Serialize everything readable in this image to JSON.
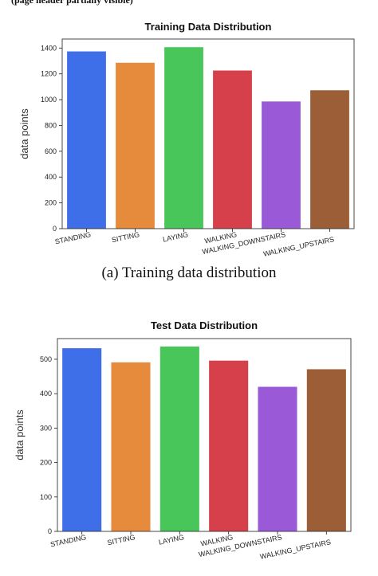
{
  "header_fragment": "(page header partially visible)",
  "caption_a": "(a)  Training data distribution",
  "charts": [
    {
      "title": "Training Data Distribution",
      "ylabel": "data points",
      "colors": [
        "#3f6fe8",
        "#e68a3c",
        "#48c65a",
        "#d6404a",
        "#9a59d6",
        "#9b5e37"
      ]
    },
    {
      "title": "Test Data Distribution",
      "ylabel": "data points",
      "colors": [
        "#3f6fe8",
        "#e68a3c",
        "#48c65a",
        "#d6404a",
        "#9a59d6",
        "#9b5e37"
      ]
    }
  ],
  "chart_data": [
    {
      "type": "bar",
      "title": "Training Data Distribution",
      "xlabel": "",
      "ylabel": "data points",
      "categories": [
        "STANDING",
        "SITTING",
        "LAYING",
        "WALKING",
        "WALKING_DOWNSTAIRS",
        "WALKING_UPSTAIRS"
      ],
      "values": [
        1374,
        1286,
        1407,
        1226,
        986,
        1073
      ],
      "ylim": [
        0,
        1470
      ],
      "yticks": [
        0,
        200,
        400,
        600,
        800,
        1000,
        1200,
        1400
      ],
      "grid": false,
      "legend": "none"
    },
    {
      "type": "bar",
      "title": "Test Data Distribution",
      "xlabel": "",
      "ylabel": "data points",
      "categories": [
        "STANDING",
        "SITTING",
        "LAYING",
        "WALKING",
        "WALKING_DOWNSTAIRS",
        "WALKING_UPSTAIRS"
      ],
      "values": [
        532,
        491,
        537,
        496,
        420,
        471
      ],
      "ylim": [
        0,
        560
      ],
      "yticks": [
        0,
        100,
        200,
        300,
        400,
        500
      ],
      "grid": false,
      "legend": "none"
    }
  ]
}
